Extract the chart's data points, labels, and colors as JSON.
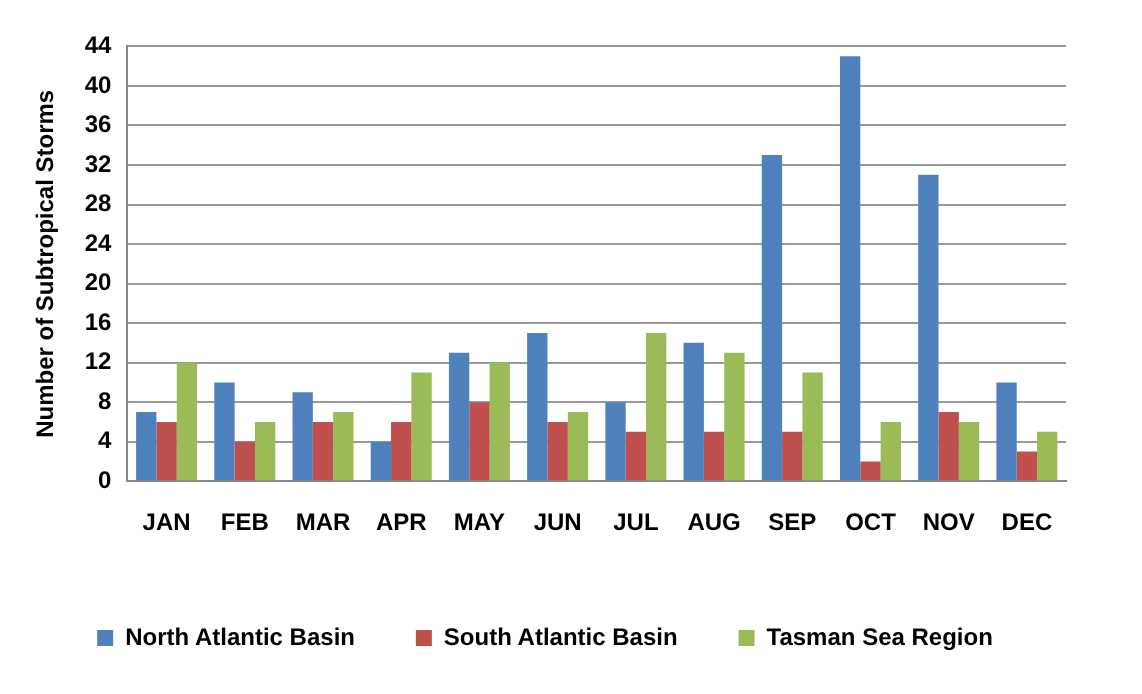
{
  "chart_data": {
    "type": "bar",
    "ylabel": "Number of Subtropical Storms",
    "categories": [
      "JAN",
      "FEB",
      "MAR",
      "APR",
      "MAY",
      "JUN",
      "JUL",
      "AUG",
      "SEP",
      "OCT",
      "NOV",
      "DEC"
    ],
    "series": [
      {
        "name": "North Atlantic Basin",
        "color": "#4f81bd",
        "values": [
          7,
          10,
          9,
          4,
          13,
          15,
          8,
          14,
          33,
          43,
          31,
          10
        ]
      },
      {
        "name": "South Atlantic Basin",
        "color": "#c0504d",
        "values": [
          6,
          4,
          6,
          6,
          8,
          6,
          5,
          5,
          5,
          2,
          7,
          3
        ]
      },
      {
        "name": "Tasman Sea Region",
        "color": "#9bbb59",
        "values": [
          12,
          6,
          7,
          11,
          12,
          7,
          15,
          13,
          11,
          6,
          6,
          5
        ]
      }
    ],
    "ylim": [
      0,
      44
    ],
    "yticks": [
      0,
      4,
      8,
      12,
      16,
      20,
      24,
      28,
      32,
      36,
      40,
      44
    ],
    "grid": "y",
    "legend": "bottom"
  }
}
